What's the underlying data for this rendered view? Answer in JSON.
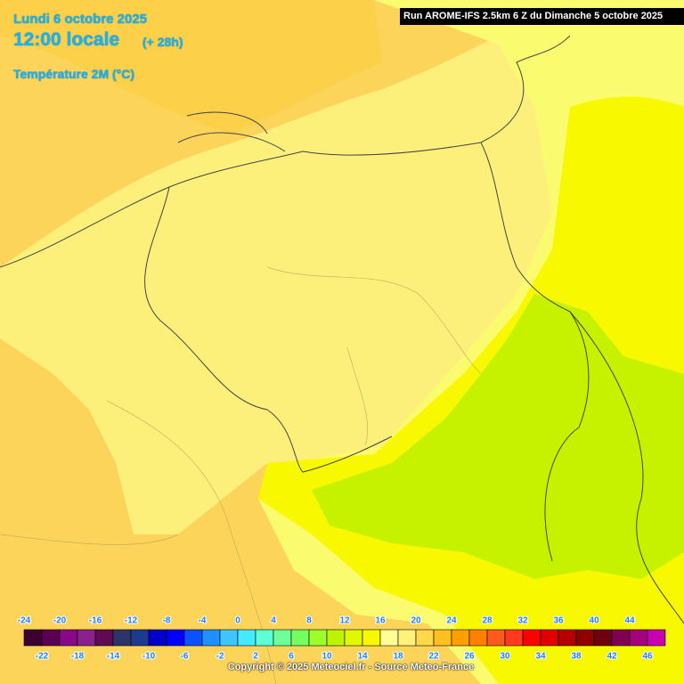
{
  "header": {
    "date": "Lundi 6 octobre 2025",
    "time": "12:00 locale",
    "lead": "(+ 28h)",
    "field": "Température 2M (°C)",
    "run": "Run AROME-IFS 2.5km 6 Z du Dimanche 5 octobre 2025"
  },
  "legend": {
    "values": [
      -24,
      -22,
      -20,
      -18,
      -16,
      -14,
      -12,
      -10,
      -8,
      -6,
      -4,
      -2,
      0,
      2,
      4,
      6,
      8,
      10,
      12,
      14,
      16,
      18,
      20,
      22,
      24,
      26,
      28,
      30,
      32,
      34,
      36,
      38,
      40,
      42,
      44,
      46
    ],
    "colors": [
      "#3c0032",
      "#5a0054",
      "#88088a",
      "#8a228e",
      "#5e0a54",
      "#2c3468",
      "#1c3a8e",
      "#0000c8",
      "#0000ff",
      "#0a52ff",
      "#1e90ff",
      "#3ec4ff",
      "#44eaff",
      "#5cffd6",
      "#6eff9a",
      "#74ff62",
      "#9aff2a",
      "#bef400",
      "#e0f800",
      "#f8f800",
      "#ffff96",
      "#fff27a",
      "#ffd84c",
      "#ffc020",
      "#ffa000",
      "#ff8000",
      "#ff5a1e",
      "#ff3a1e",
      "#ff0000",
      "#e00000",
      "#b40000",
      "#900000",
      "#6e0010",
      "#820052",
      "#a4007c",
      "#c800b4"
    ]
  },
  "footer": {
    "copyright": "Copyright © 2025 Meteociel.fr - Source Meteo-France"
  }
}
